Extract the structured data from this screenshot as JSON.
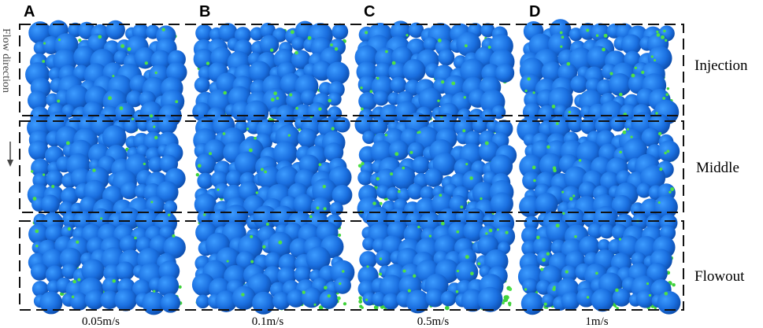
{
  "panels": [
    {
      "label": "A",
      "speed": "0.05m/s"
    },
    {
      "label": "B",
      "speed": "0.1m/s"
    },
    {
      "label": "C",
      "speed": "0.5m/s"
    },
    {
      "label": "D",
      "speed": "1m/s"
    }
  ],
  "regions": [
    "Injection",
    "Middle",
    "Flowout"
  ],
  "flow_direction": "Flow direction"
}
